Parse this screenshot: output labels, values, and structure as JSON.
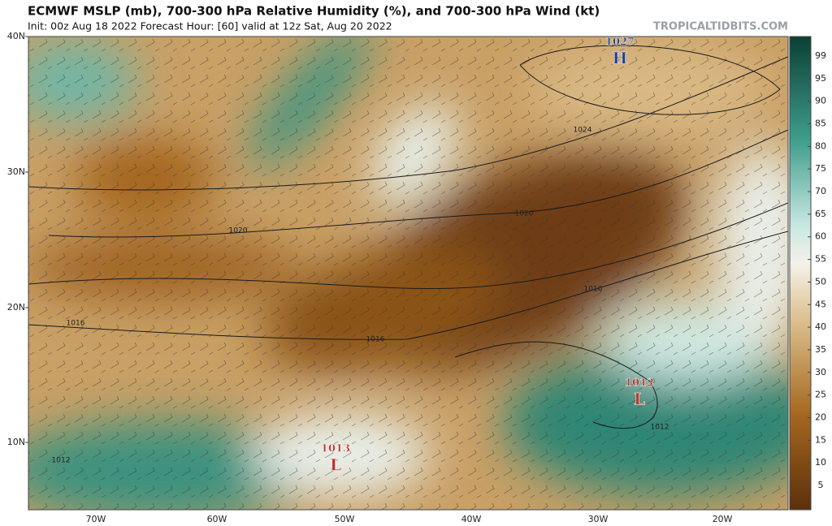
{
  "header": {
    "title": "ECMWF MSLP (mb), 700-300 hPa Relative Humidity (%), and 700-300 hPa Wind (kt)",
    "subtitle": "Init: 00z Aug 18 2022   Forecast Hour: [60]   valid at 12z Sat, Aug 20 2022",
    "source": "TROPICALTIDBITS.COM"
  },
  "map": {
    "latitude_labels": [
      "40N",
      "30N",
      "20N",
      "10N"
    ],
    "longitude_labels": [
      "70W",
      "60W",
      "50W",
      "40W",
      "30W",
      "20W"
    ],
    "pressure_centers": [
      {
        "value": "1027",
        "symbol": "H"
      },
      {
        "value": "1012",
        "symbol": "L"
      },
      {
        "value": "1013",
        "symbol": "L"
      }
    ],
    "isobar_labels": [
      "1024",
      "1020",
      "1020",
      "1016",
      "1016",
      "1016",
      "1012",
      "1012"
    ]
  },
  "colorbar": {
    "labels": [
      99,
      95,
      90,
      85,
      80,
      75,
      70,
      65,
      60,
      55,
      50,
      45,
      40,
      35,
      30,
      25,
      20,
      15,
      10,
      5
    ]
  }
}
